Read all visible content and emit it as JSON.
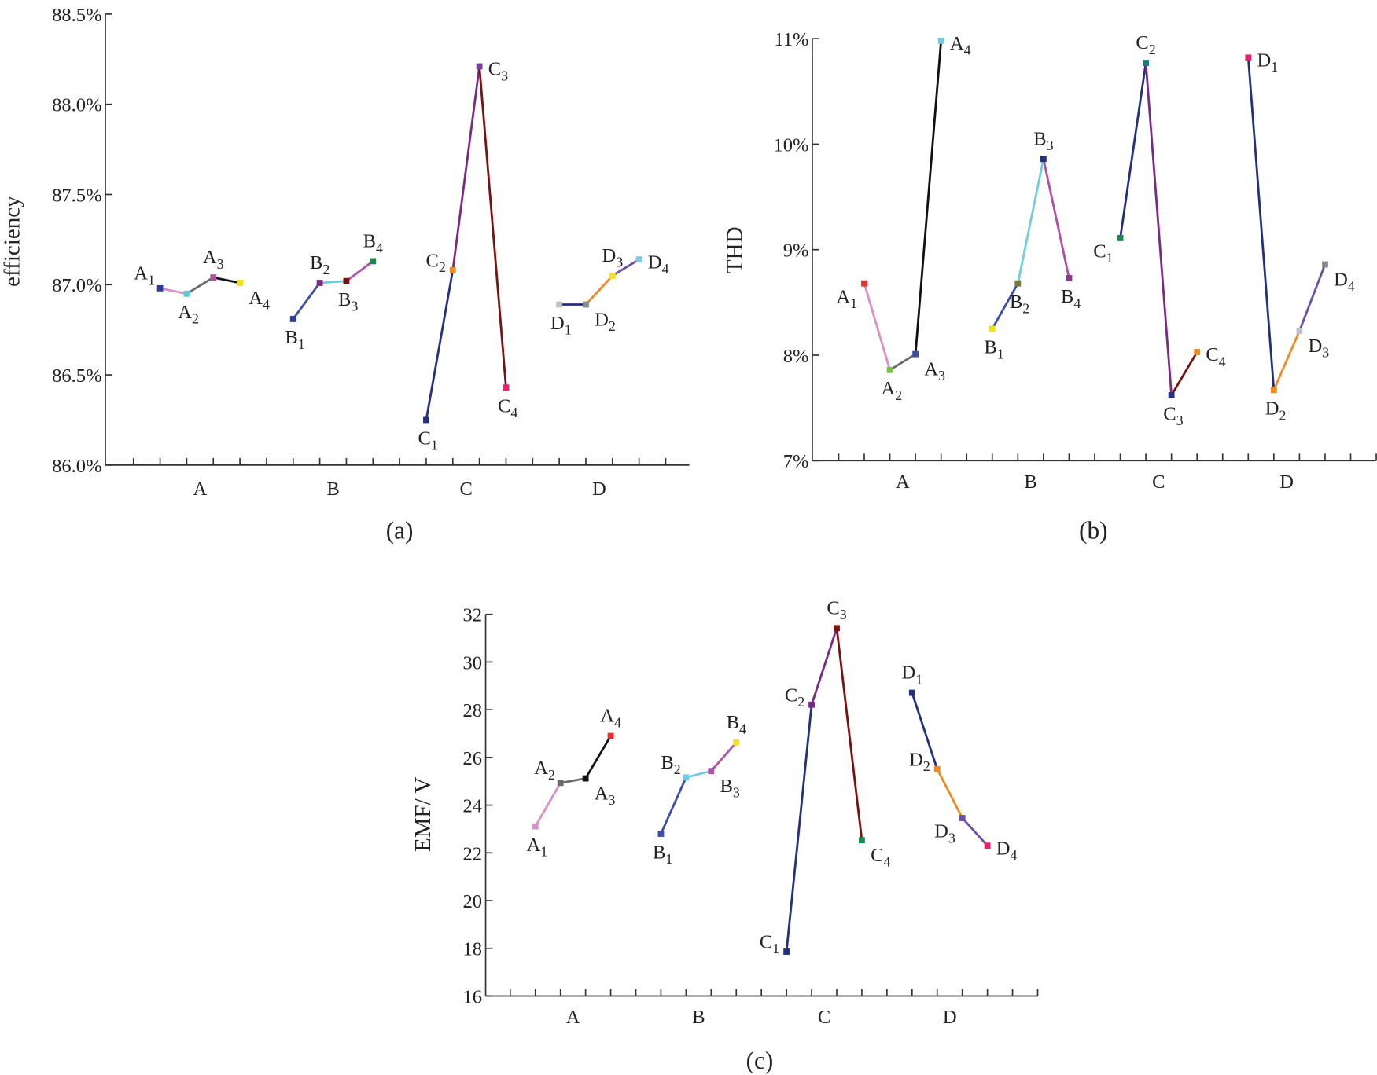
{
  "chart_data": [
    {
      "type": "line",
      "caption": "(a)",
      "ylabel": "efficiency",
      "categories": [
        "A",
        "B",
        "C",
        "D"
      ],
      "ylim": [
        86,
        88.5
      ],
      "yticks": [
        {
          "value": 86,
          "label": "86.0%"
        },
        {
          "value": 86.5,
          "label": "86.5%"
        },
        {
          "value": 87,
          "label": "87.0%"
        },
        {
          "value": 87.5,
          "label": "87.5%"
        },
        {
          "value": 88,
          "label": "88.0%"
        },
        {
          "value": 88.5,
          "label": "88.5%"
        }
      ],
      "series": [
        {
          "point_labels": [
            {
              "text": "A",
              "sub": "1"
            },
            {
              "text": "A",
              "sub": "2"
            },
            {
              "text": "A",
              "sub": "3"
            },
            {
              "text": "A",
              "sub": "4"
            }
          ],
          "values": [
            86.98,
            86.95,
            87.04,
            87.01
          ],
          "marker_colors": [
            "#2d3c9c",
            "#5fc9d9",
            "#b04fa8",
            "#f2e21c"
          ],
          "segment_colors": [
            "#d98fc9",
            "#6b6b6b",
            "#111111"
          ]
        },
        {
          "point_labels": [
            {
              "text": "B",
              "sub": "1"
            },
            {
              "text": "B",
              "sub": "2"
            },
            {
              "text": "B",
              "sub": "3"
            },
            {
              "text": "B",
              "sub": "4"
            }
          ],
          "values": [
            86.81,
            87.01,
            87.02,
            87.13
          ],
          "marker_colors": [
            "#2d3c9c",
            "#7b2a82",
            "#7a1010",
            "#1a8a4a"
          ],
          "segment_colors": [
            "#3a4fa8",
            "#6fcde0",
            "#b04fa8"
          ]
        },
        {
          "point_labels": [
            {
              "text": "C",
              "sub": "1"
            },
            {
              "text": "C",
              "sub": "2"
            },
            {
              "text": "C",
              "sub": "3"
            },
            {
              "text": "C",
              "sub": "4"
            }
          ],
          "values": [
            86.25,
            87.08,
            88.21,
            86.43
          ],
          "marker_colors": [
            "#23307f",
            "#f08a24",
            "#7b3fa0",
            "#e0246c"
          ],
          "segment_colors": [
            "#23307f",
            "#7b2a82",
            "#7a1010"
          ]
        },
        {
          "point_labels": [
            {
              "text": "D",
              "sub": "1"
            },
            {
              "text": "D",
              "sub": "2"
            },
            {
              "text": "D",
              "sub": "3"
            },
            {
              "text": "D",
              "sub": "4"
            }
          ],
          "values": [
            86.89,
            86.89,
            87.05,
            87.14
          ],
          "marker_colors": [
            "#c0c0c8",
            "#8a8a8a",
            "#f2e21c",
            "#7fc7e6"
          ],
          "segment_colors": [
            "#23307f",
            "#f08a24",
            "#6a4fa8"
          ]
        }
      ]
    },
    {
      "type": "line",
      "caption": "(b)",
      "ylabel": "THD",
      "categories": [
        "A",
        "B",
        "C",
        "D"
      ],
      "ylim": [
        7,
        11
      ],
      "yticks": [
        {
          "value": 7,
          "label": "7%"
        },
        {
          "value": 8,
          "label": "8%"
        },
        {
          "value": 9,
          "label": "9%"
        },
        {
          "value": 10,
          "label": "10%"
        },
        {
          "value": 11,
          "label": "11%"
        }
      ],
      "series": [
        {
          "point_labels": [
            {
              "text": "A",
              "sub": "1"
            },
            {
              "text": "A",
              "sub": "2"
            },
            {
              "text": "A",
              "sub": "3"
            },
            {
              "text": "A",
              "sub": "4"
            }
          ],
          "values": [
            8.68,
            7.86,
            8.01,
            10.98
          ],
          "marker_colors": [
            "#e8302a",
            "#7cc242",
            "#3a4fa8",
            "#6fcde0"
          ],
          "segment_colors": [
            "#d98fc9",
            "#6b6b6b",
            "#111111"
          ]
        },
        {
          "point_labels": [
            {
              "text": "B",
              "sub": "1"
            },
            {
              "text": "B",
              "sub": "2"
            },
            {
              "text": "B",
              "sub": "3"
            },
            {
              "text": "B",
              "sub": "4"
            }
          ],
          "values": [
            8.25,
            8.68,
            9.86,
            8.73
          ],
          "marker_colors": [
            "#f2e21c",
            "#7a7a3a",
            "#23307f",
            "#8a3a8a"
          ],
          "segment_colors": [
            "#3a4fa8",
            "#6fcde0",
            "#b04fa8"
          ]
        },
        {
          "point_labels": [
            {
              "text": "C",
              "sub": "1"
            },
            {
              "text": "C",
              "sub": "2"
            },
            {
              "text": "C",
              "sub": "3"
            },
            {
              "text": "C",
              "sub": "4"
            }
          ],
          "values": [
            9.11,
            10.77,
            7.62,
            8.03
          ],
          "marker_colors": [
            "#1a8a4a",
            "#1a7a7a",
            "#23307f",
            "#f08a24"
          ],
          "segment_colors": [
            "#23307f",
            "#7b2a82",
            "#7a1010"
          ]
        },
        {
          "point_labels": [
            {
              "text": "D",
              "sub": "1"
            },
            {
              "text": "D",
              "sub": "2"
            },
            {
              "text": "D",
              "sub": "3"
            },
            {
              "text": "D",
              "sub": "4"
            }
          ],
          "values": [
            10.82,
            7.67,
            8.23,
            8.86
          ],
          "marker_colors": [
            "#e0246c",
            "#f08a24",
            "#c0c0c8",
            "#8a8a8a"
          ],
          "segment_colors": [
            "#23307f",
            "#f08a24",
            "#6a4fa8"
          ]
        }
      ]
    },
    {
      "type": "line",
      "caption": "(c)",
      "ylabel": "EMF/ V",
      "categories": [
        "A",
        "B",
        "C",
        "D"
      ],
      "ylim": [
        16,
        32
      ],
      "yticks": [
        16,
        18,
        20,
        22,
        24,
        26,
        28,
        30,
        32
      ],
      "series": [
        {
          "point_labels": [
            {
              "text": "A",
              "sub": "1"
            },
            {
              "text": "A",
              "sub": "2"
            },
            {
              "text": "A",
              "sub": "3"
            },
            {
              "text": "A",
              "sub": "4"
            }
          ],
          "values": [
            23.11,
            24.93,
            25.12,
            26.9
          ],
          "marker_colors": [
            "#d98fc9",
            "#6b6b6b",
            "#111111",
            "#e8302a"
          ],
          "segment_colors": [
            "#d98fc9",
            "#6b6b6b",
            "#111111"
          ]
        },
        {
          "point_labels": [
            {
              "text": "B",
              "sub": "1"
            },
            {
              "text": "B",
              "sub": "2"
            },
            {
              "text": "B",
              "sub": "3"
            },
            {
              "text": "B",
              "sub": "4"
            }
          ],
          "values": [
            22.8,
            25.16,
            25.43,
            26.63
          ],
          "marker_colors": [
            "#3a4fa8",
            "#6fcde0",
            "#b04fa8",
            "#f2e21c"
          ],
          "segment_colors": [
            "#3a4fa8",
            "#6fcde0",
            "#b04fa8"
          ]
        },
        {
          "point_labels": [
            {
              "text": "C",
              "sub": "1"
            },
            {
              "text": "C",
              "sub": "2"
            },
            {
              "text": "C",
              "sub": "3"
            },
            {
              "text": "C",
              "sub": "4"
            }
          ],
          "values": [
            17.86,
            28.21,
            31.42,
            22.53
          ],
          "marker_colors": [
            "#23307f",
            "#7b2a82",
            "#7a1010",
            "#1a8a4a"
          ],
          "segment_colors": [
            "#23307f",
            "#7b2a82",
            "#7a1010"
          ]
        },
        {
          "point_labels": [
            {
              "text": "D",
              "sub": "1"
            },
            {
              "text": "D",
              "sub": "2"
            },
            {
              "text": "D",
              "sub": "3"
            },
            {
              "text": "D",
              "sub": "4"
            }
          ],
          "values": [
            28.71,
            25.51,
            23.46,
            22.3
          ],
          "marker_colors": [
            "#23307f",
            "#f08a24",
            "#6a4fa8",
            "#e0246c"
          ],
          "segment_colors": [
            "#23307f",
            "#f08a24",
            "#6a4fa8"
          ]
        }
      ]
    }
  ]
}
